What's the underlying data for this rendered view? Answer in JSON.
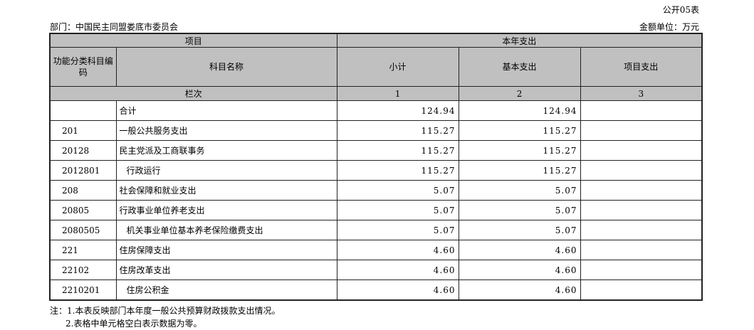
{
  "form_no": "公开05表",
  "department": "部门：中国民主同盟娄底市委员会",
  "unit": "金额单位：万元",
  "header": {
    "project": "项目",
    "current_year": "本年支出",
    "code": "功能分类科目编码",
    "name": "科目名称",
    "subtotal": "小计",
    "basic": "基本支出",
    "project_exp": "项目支出",
    "column_order": "栏次",
    "col1": "1",
    "col2": "2",
    "col3": "3"
  },
  "rows": [
    {
      "code": "",
      "name": "合计",
      "subtotal": "124.94",
      "basic": "124.94",
      "project": ""
    },
    {
      "code": "201",
      "name": "一般公共服务支出",
      "subtotal": "115.27",
      "basic": "115.27",
      "project": ""
    },
    {
      "code": "20128",
      "name": "民主党派及工商联事务",
      "subtotal": "115.27",
      "basic": "115.27",
      "project": ""
    },
    {
      "code": "2012801",
      "name": "行政运行",
      "subtotal": "115.27",
      "basic": "115.27",
      "project": ""
    },
    {
      "code": "208",
      "name": "社会保障和就业支出",
      "subtotal": "5.07",
      "basic": "5.07",
      "project": ""
    },
    {
      "code": "20805",
      "name": "行政事业单位养老支出",
      "subtotal": "5.07",
      "basic": "5.07",
      "project": ""
    },
    {
      "code": "2080505",
      "name": "机关事业单位基本养老保险缴费支出",
      "subtotal": "5.07",
      "basic": "5.07",
      "project": ""
    },
    {
      "code": "221",
      "name": "住房保障支出",
      "subtotal": "4.60",
      "basic": "4.60",
      "project": ""
    },
    {
      "code": "22102",
      "name": "住房改革支出",
      "subtotal": "4.60",
      "basic": "4.60",
      "project": ""
    },
    {
      "code": "2210201",
      "name": "住房公积金",
      "subtotal": "4.60",
      "basic": "4.60",
      "project": ""
    }
  ],
  "notes": [
    "注：1.本表反映部门本年度一般公共预算财政拨款支出情况。",
    "2.表格中单元格空白表示数据为零。"
  ]
}
